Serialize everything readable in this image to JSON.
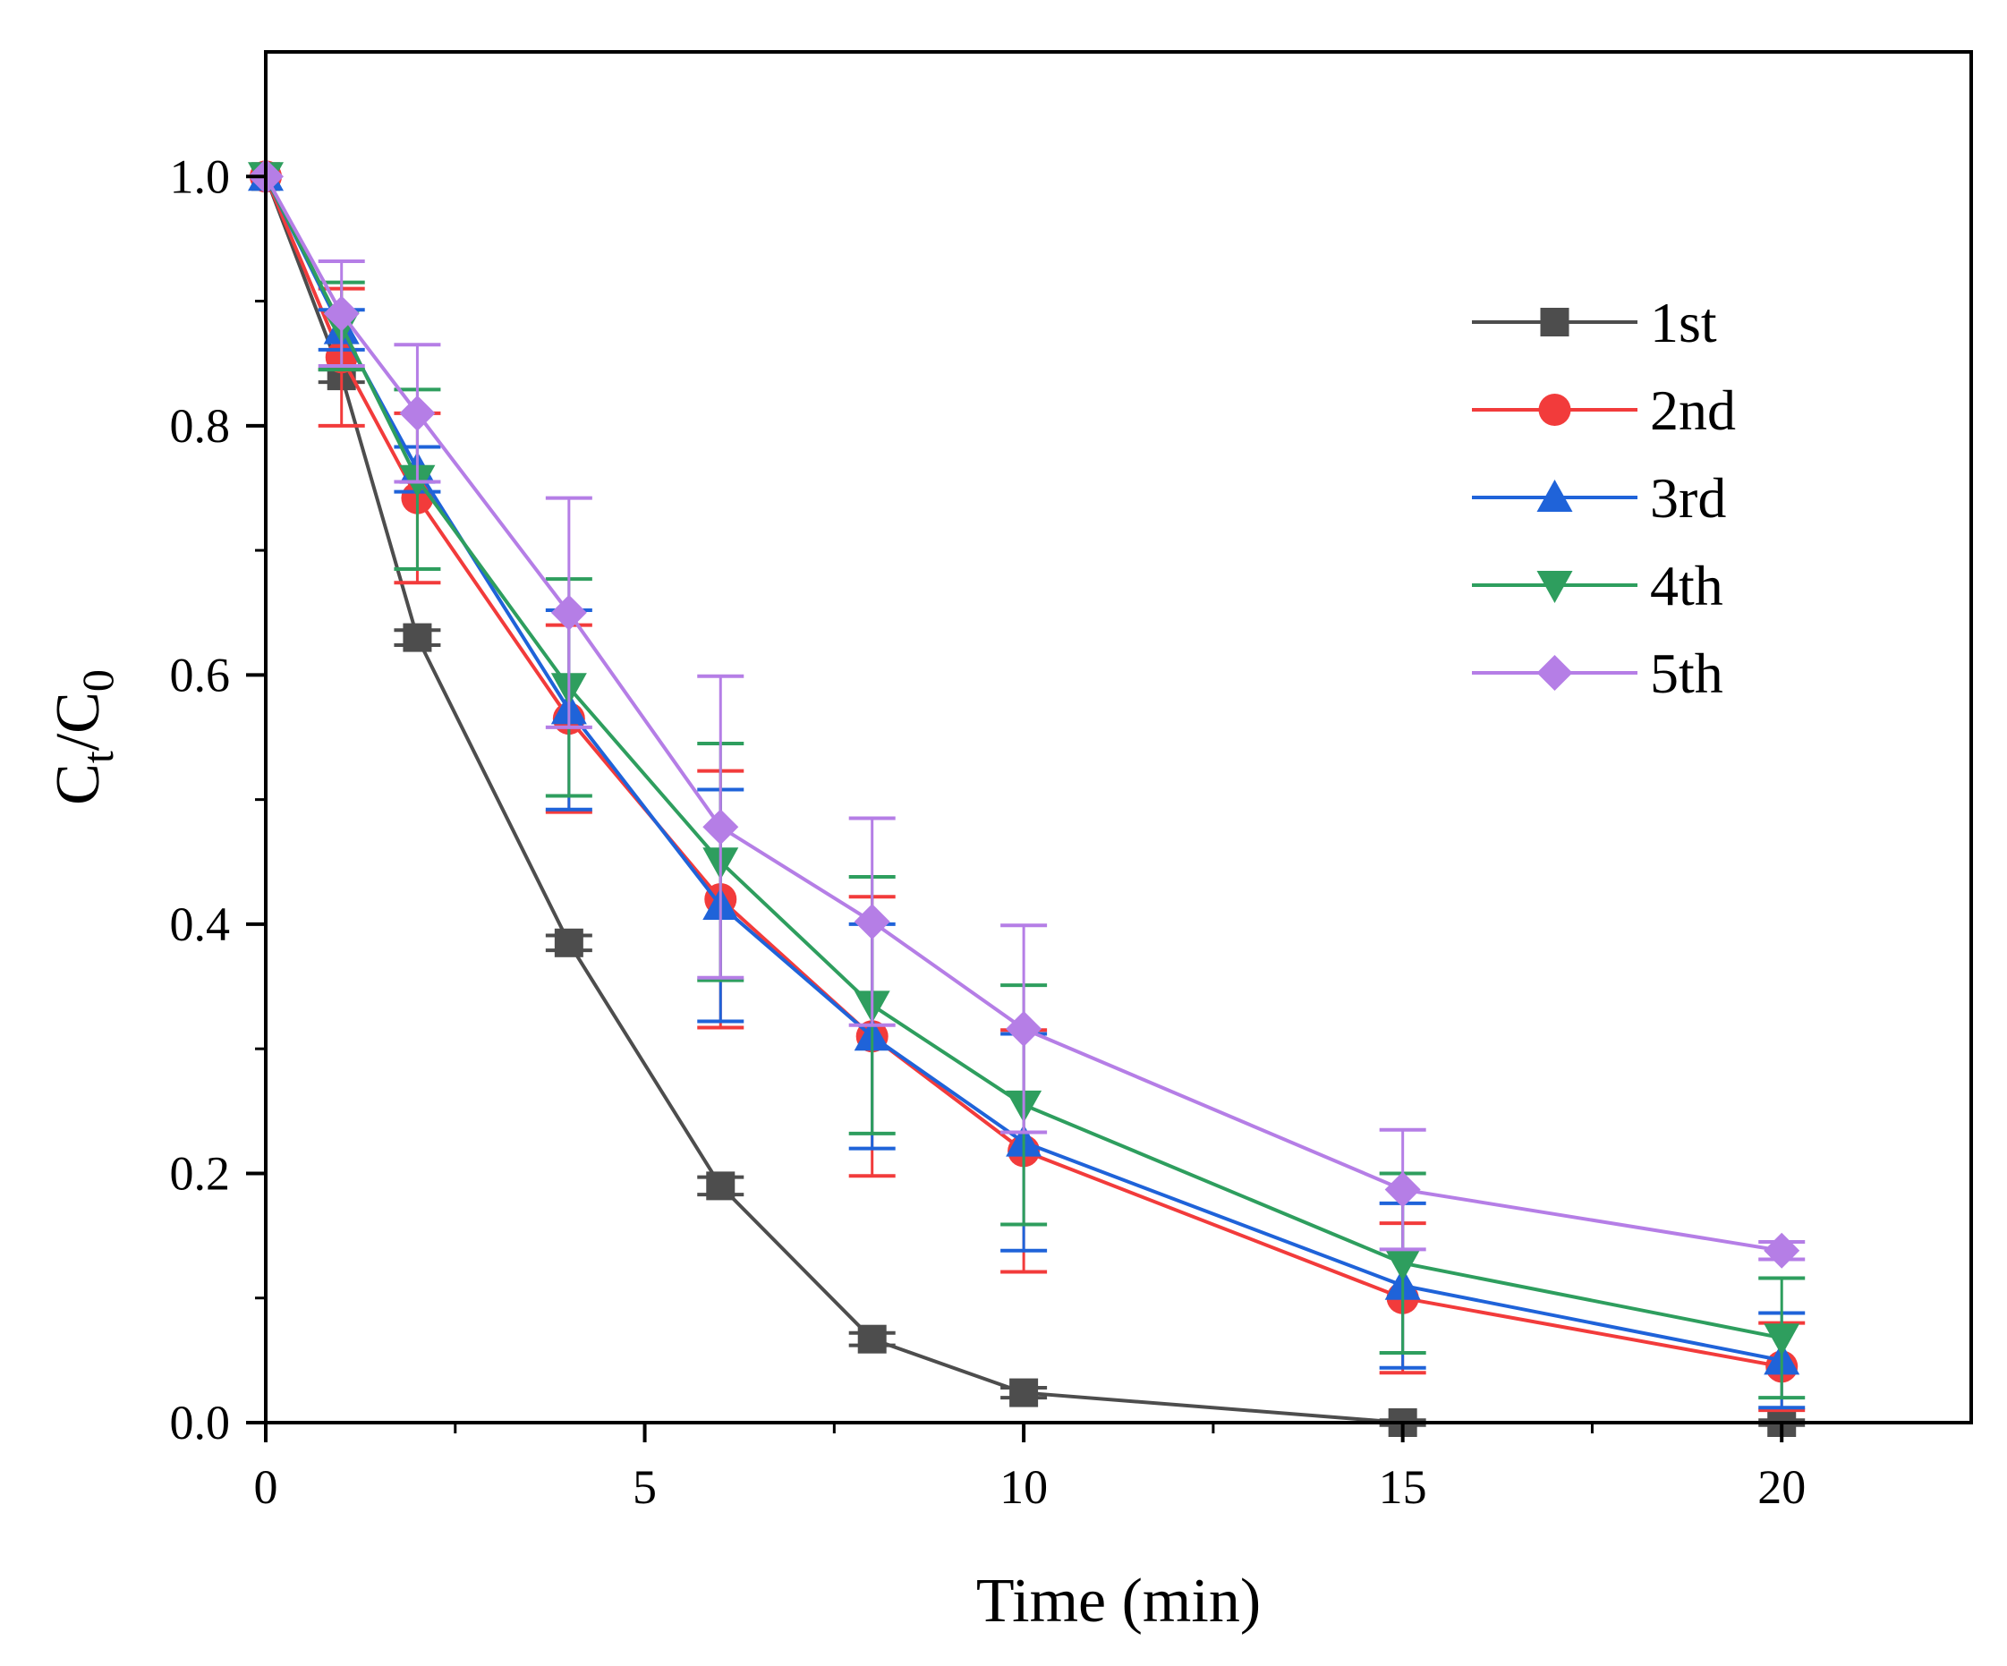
{
  "chart_data": {
    "type": "line",
    "title": "",
    "xlabel": "Time (min)",
    "ylabel_main": "C",
    "ylabel_sub1": "t",
    "ylabel_slash": "/",
    "ylabel_sub2": "0",
    "xlim": [
      0,
      22.5
    ],
    "ylim": [
      0,
      1.1
    ],
    "xticks": [
      0,
      5,
      10,
      15,
      20
    ],
    "xtick_labels": [
      "0",
      "5",
      "10",
      "15",
      "20"
    ],
    "yticks": [
      0,
      0.2,
      0.4,
      0.6,
      0.8,
      1.0
    ],
    "ytick_labels": [
      "0.0",
      "0.2",
      "0.4",
      "0.6",
      "0.8",
      "1.0"
    ],
    "x_minor_step": 2.5,
    "y_minor_step": 0.1,
    "legend_position": "top-right",
    "x": [
      0,
      1,
      2,
      4,
      6,
      8,
      10,
      15,
      20
    ],
    "series": [
      {
        "name": "1st",
        "color": "#4d4d4d",
        "marker": "square",
        "values": [
          1.0,
          0.84,
          0.63,
          0.385,
          0.19,
          0.067,
          0.024,
          0.0,
          0.0
        ],
        "errors": [
          0.0,
          0.005,
          0.006,
          0.006,
          0.007,
          0.005,
          0.004,
          0.002,
          0.002
        ]
      },
      {
        "name": "2nd",
        "color": "#f23b3b",
        "marker": "circle",
        "values": [
          1.0,
          0.855,
          0.742,
          0.565,
          0.42,
          0.31,
          0.218,
          0.1,
          0.045
        ],
        "errors": [
          0.0,
          0.055,
          0.068,
          0.075,
          0.103,
          0.112,
          0.097,
          0.06,
          0.035
        ]
      },
      {
        "name": "3rd",
        "color": "#1f63d9",
        "marker": "triangle-up",
        "values": [
          1.0,
          0.877,
          0.765,
          0.572,
          0.415,
          0.31,
          0.225,
          0.11,
          0.05
        ],
        "errors": [
          0.0,
          0.016,
          0.018,
          0.08,
          0.093,
          0.09,
          0.087,
          0.066,
          0.038
        ]
      },
      {
        "name": "4th",
        "color": "#2e9e5e",
        "marker": "triangle-down",
        "values": [
          1.0,
          0.88,
          0.757,
          0.59,
          0.45,
          0.335,
          0.255,
          0.128,
          0.068
        ],
        "errors": [
          0.0,
          0.035,
          0.072,
          0.087,
          0.095,
          0.103,
          0.096,
          0.072,
          0.048
        ]
      },
      {
        "name": "5th",
        "color": "#b57ee6",
        "marker": "diamond",
        "values": [
          1.0,
          0.89,
          0.81,
          0.65,
          0.478,
          0.402,
          0.316,
          0.187,
          0.138
        ],
        "errors": [
          0.0,
          0.042,
          0.055,
          0.092,
          0.121,
          0.083,
          0.083,
          0.048,
          0.007
        ]
      }
    ]
  }
}
